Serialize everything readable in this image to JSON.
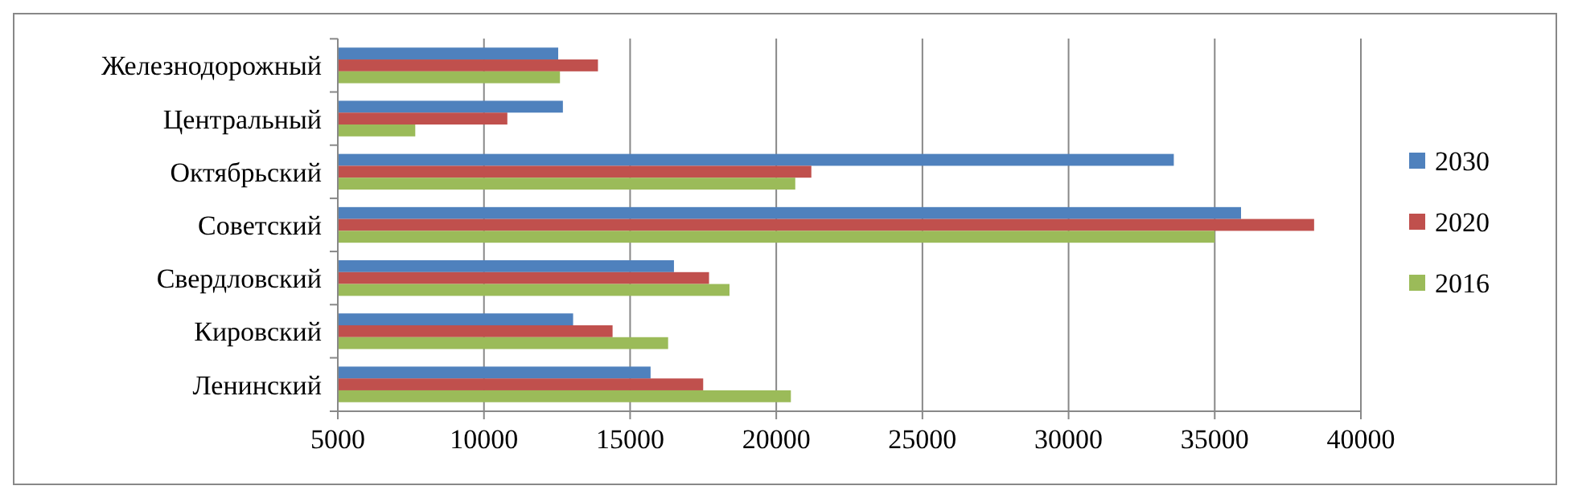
{
  "chart_data": {
    "type": "bar",
    "orientation": "horizontal",
    "categories": [
      "Железнодорожный",
      "Центральный",
      "Октябрьский",
      "Советский",
      "Свердловский",
      "Кировский",
      "Ленинский"
    ],
    "series": [
      {
        "name": "2030",
        "color": "#4f81bd",
        "values": [
          12540,
          12700,
          33600,
          35900,
          16500,
          13050,
          15700
        ]
      },
      {
        "name": "2020",
        "color": "#c0504d",
        "values": [
          13900,
          10800,
          21200,
          38400,
          17700,
          14400,
          17500
        ]
      },
      {
        "name": "2016",
        "color": "#9bbb59",
        "values": [
          12600,
          7650,
          20650,
          35000,
          18400,
          16300,
          20500
        ]
      }
    ],
    "xlim": [
      5000,
      40000
    ],
    "xticks": [
      5000,
      10000,
      15000,
      20000,
      25000,
      30000,
      35000,
      40000
    ],
    "grid": "x",
    "legend": "right"
  }
}
